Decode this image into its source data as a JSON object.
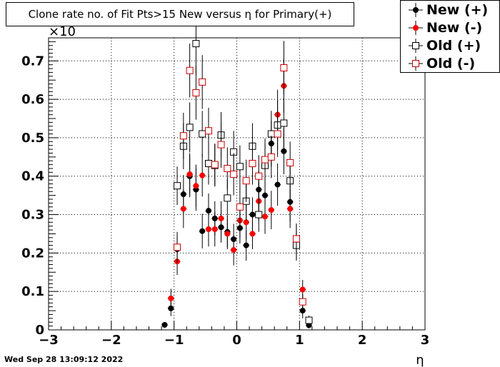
{
  "chart_data": {
    "type": "scatter",
    "title": "Clone rate no. of Fit Pts>15 New versus η for Primary(+)",
    "xlabel": "η",
    "ylabel": "",
    "y_exponent": "×10",
    "xlim": [
      -3,
      3
    ],
    "ylim": [
      0,
      0.76
    ],
    "x_ticks": [
      "−3",
      "−2",
      "−1",
      "0",
      "1",
      "2",
      "3"
    ],
    "y_ticks": [
      "0",
      "0.1",
      "0.2",
      "0.3",
      "0.4",
      "0.5",
      "0.6",
      "0.7"
    ],
    "grid": true,
    "legend_position": "top-right",
    "series": [
      {
        "name": "New (+)",
        "marker": "filled-circle",
        "color": "#000000",
        "x": [
          -1.15,
          -1.05,
          -0.95,
          -0.85,
          -0.75,
          -0.65,
          -0.55,
          -0.45,
          -0.35,
          -0.25,
          -0.15,
          -0.05,
          0.05,
          0.15,
          0.25,
          0.35,
          0.45,
          0.55,
          0.65,
          0.75,
          0.85,
          0.95,
          1.05,
          1.15
        ],
        "y": [
          0.013,
          0.056,
          0.21,
          0.353,
          0.4,
          0.365,
          0.257,
          0.31,
          0.29,
          0.267,
          0.255,
          0.236,
          0.265,
          0.22,
          0.3,
          0.365,
          0.35,
          0.485,
          0.378,
          0.465,
          0.333,
          0.22,
          0.05,
          0.012
        ],
        "err": [
          0.006,
          0.02,
          0.035,
          0.05,
          0.055,
          0.055,
          0.045,
          0.045,
          0.045,
          0.04,
          0.04,
          0.04,
          0.04,
          0.04,
          0.045,
          0.05,
          0.05,
          0.06,
          0.055,
          0.06,
          0.05,
          0.035,
          0.02,
          0.008
        ]
      },
      {
        "name": "New (-)",
        "marker": "filled-circle",
        "color": "#ff0000",
        "x": [
          -1.15,
          -1.05,
          -0.95,
          -0.85,
          -0.75,
          -0.65,
          -0.55,
          -0.45,
          -0.35,
          -0.25,
          -0.15,
          -0.05,
          0.05,
          0.15,
          0.25,
          0.35,
          0.45,
          0.55,
          0.65,
          0.75,
          0.85,
          0.95,
          1.05,
          1.15
        ],
        "y": [
          0.0,
          0.082,
          0.178,
          0.315,
          0.405,
          0.375,
          0.402,
          0.262,
          0.262,
          0.29,
          0.25,
          0.208,
          0.285,
          0.28,
          0.25,
          0.335,
          0.295,
          0.312,
          0.56,
          0.635,
          0.315,
          0.238,
          0.105,
          0.0
        ],
        "err": [
          0.0,
          0.025,
          0.035,
          0.05,
          0.055,
          0.055,
          0.055,
          0.045,
          0.045,
          0.045,
          0.04,
          0.04,
          0.045,
          0.045,
          0.04,
          0.05,
          0.045,
          0.05,
          0.065,
          0.07,
          0.05,
          0.035,
          0.025,
          0.0
        ]
      },
      {
        "name": "Old (+)",
        "marker": "open-square",
        "color": "#000000",
        "x": [
          -1.15,
          -1.05,
          -0.95,
          -0.85,
          -0.75,
          -0.65,
          -0.55,
          -0.45,
          -0.35,
          -0.25,
          -0.15,
          -0.05,
          0.05,
          0.15,
          0.25,
          0.35,
          0.45,
          0.55,
          0.65,
          0.75,
          0.85,
          0.95,
          1.05,
          1.15
        ],
        "y": [
          0.0,
          0.0,
          0.375,
          0.478,
          0.527,
          0.745,
          0.51,
          0.433,
          0.428,
          0.507,
          0.343,
          0.463,
          0.425,
          0.335,
          0.478,
          0.3,
          0.428,
          0.51,
          0.533,
          0.538,
          0.388,
          0.22,
          0.0,
          0.025
        ],
        "err": [
          0.0,
          0.0,
          0.05,
          0.06,
          0.065,
          0.08,
          0.06,
          0.055,
          0.055,
          0.06,
          0.05,
          0.055,
          0.055,
          0.05,
          0.06,
          0.045,
          0.055,
          0.06,
          0.065,
          0.065,
          0.055,
          0.04,
          0.0,
          0.012
        ]
      },
      {
        "name": "Old (-)",
        "marker": "open-square",
        "color": "#cc0000",
        "x": [
          -1.15,
          -1.05,
          -0.95,
          -0.85,
          -0.75,
          -0.65,
          -0.55,
          -0.45,
          -0.35,
          -0.25,
          -0.15,
          -0.05,
          0.05,
          0.15,
          0.25,
          0.35,
          0.45,
          0.55,
          0.65,
          0.75,
          0.85,
          0.95,
          1.05,
          1.15
        ],
        "y": [
          0.0,
          0.0,
          0.215,
          0.505,
          0.675,
          0.617,
          0.645,
          0.518,
          0.43,
          0.482,
          0.42,
          0.405,
          0.32,
          0.388,
          0.433,
          0.4,
          0.443,
          0.45,
          0.51,
          0.682,
          0.435,
          0.237,
          0.073,
          0.0
        ],
        "err": [
          0.0,
          0.0,
          0.04,
          0.06,
          0.07,
          0.07,
          0.07,
          0.06,
          0.055,
          0.06,
          0.055,
          0.055,
          0.05,
          0.055,
          0.055,
          0.055,
          0.055,
          0.055,
          0.06,
          0.07,
          0.055,
          0.04,
          0.02,
          0.0
        ]
      }
    ]
  },
  "footer": {
    "timestamp": "Wed Sep 28 13:09:12 2022"
  }
}
